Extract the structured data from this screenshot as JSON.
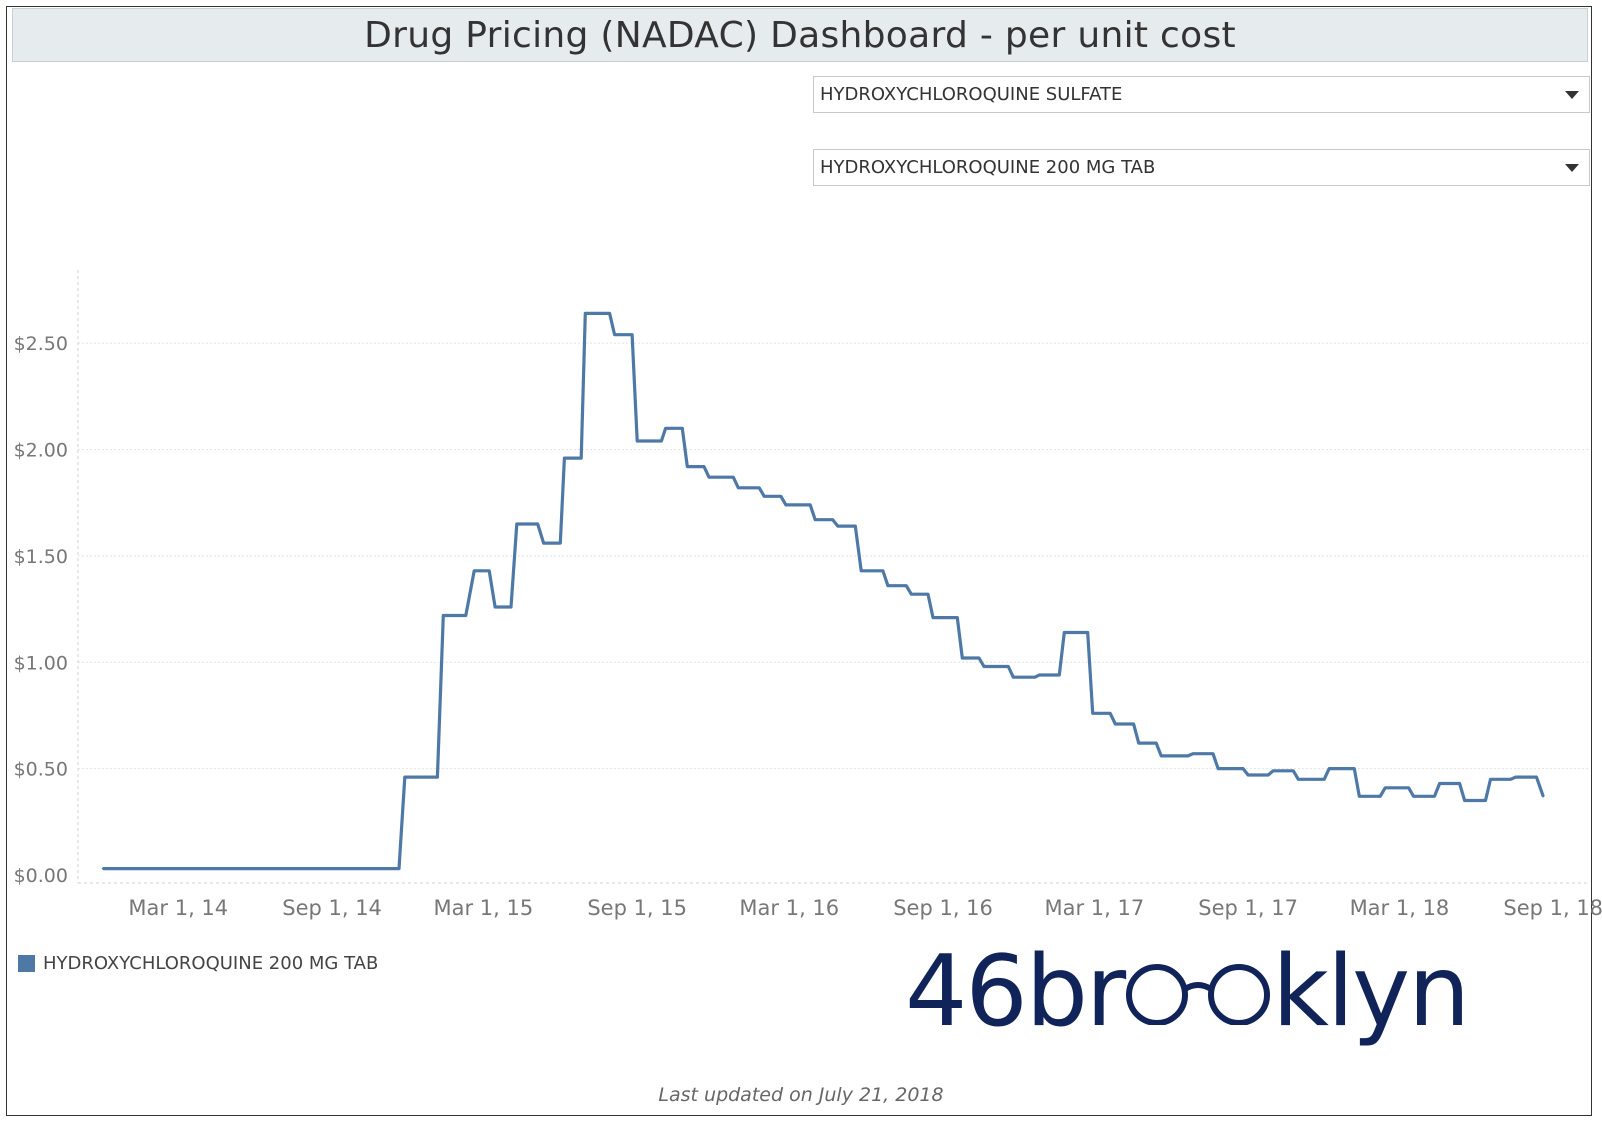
{
  "title": "Drug Pricing (NADAC) Dashboard - per unit cost",
  "filters": {
    "drug_name": "HYDROXYCHLOROQUINE SULFATE",
    "product": "HYDROXYCHLOROQUINE 200 MG TAB"
  },
  "legend": {
    "label": "HYDROXYCHLOROQUINE 200 MG TAB"
  },
  "logo": {
    "prefix": "46br",
    "suffix": "klyn"
  },
  "footer": {
    "updated": "Last updated on July 21, 2018"
  },
  "colors": {
    "series": "#4e79a7",
    "logo": "#10245a"
  },
  "chart_data": {
    "type": "line",
    "title": "",
    "xlabel": "",
    "ylabel": "",
    "ylim": [
      0,
      2.75
    ],
    "xlim": [
      "2013-11-01",
      "2018-10-15"
    ],
    "y_ticks": [
      {
        "value": 0.0,
        "label": "$0.00"
      },
      {
        "value": 0.5,
        "label": "$0.50"
      },
      {
        "value": 1.0,
        "label": "$1.00"
      },
      {
        "value": 1.5,
        "label": "$1.50"
      },
      {
        "value": 2.0,
        "label": "$2.00"
      },
      {
        "value": 2.5,
        "label": "$2.50"
      }
    ],
    "x_ticks": [
      {
        "date": "2014-03-01",
        "label": "Mar 1, 14"
      },
      {
        "date": "2014-09-01",
        "label": "Sep 1, 14"
      },
      {
        "date": "2015-03-01",
        "label": "Mar 1, 15"
      },
      {
        "date": "2015-09-01",
        "label": "Sep 1, 15"
      },
      {
        "date": "2016-03-01",
        "label": "Mar 1, 16"
      },
      {
        "date": "2016-09-01",
        "label": "Sep 1, 16"
      },
      {
        "date": "2017-03-01",
        "label": "Mar 1, 17"
      },
      {
        "date": "2017-09-01",
        "label": "Sep 1, 17"
      },
      {
        "date": "2018-03-01",
        "label": "Mar 1, 18"
      },
      {
        "date": "2018-09-01",
        "label": "Sep 1, 18"
      }
    ],
    "series": [
      {
        "name": "HYDROXYCHLOROQUINE 200 MG TAB",
        "points": [
          [
            "2013-12-01",
            0.03
          ],
          [
            "2014-01-01",
            0.03
          ],
          [
            "2014-03-01",
            0.03
          ],
          [
            "2014-05-01",
            0.03
          ],
          [
            "2014-07-01",
            0.03
          ],
          [
            "2014-09-01",
            0.03
          ],
          [
            "2014-11-01",
            0.03
          ],
          [
            "2014-11-20",
            0.03
          ],
          [
            "2014-11-27",
            0.46
          ],
          [
            "2015-01-05",
            0.46
          ],
          [
            "2015-01-12",
            1.22
          ],
          [
            "2015-02-08",
            1.22
          ],
          [
            "2015-02-18",
            1.43
          ],
          [
            "2015-03-08",
            1.43
          ],
          [
            "2015-03-15",
            1.26
          ],
          [
            "2015-04-03",
            1.26
          ],
          [
            "2015-04-10",
            1.65
          ],
          [
            "2015-05-05",
            1.65
          ],
          [
            "2015-05-12",
            1.56
          ],
          [
            "2015-06-01",
            1.56
          ],
          [
            "2015-06-06",
            1.96
          ],
          [
            "2015-06-26",
            1.96
          ],
          [
            "2015-07-01",
            2.64
          ],
          [
            "2015-07-30",
            2.64
          ],
          [
            "2015-08-05",
            2.54
          ],
          [
            "2015-08-26",
            2.54
          ],
          [
            "2015-09-01",
            2.04
          ],
          [
            "2015-09-30",
            2.04
          ],
          [
            "2015-10-05",
            2.1
          ],
          [
            "2015-10-25",
            2.1
          ],
          [
            "2015-10-31",
            1.92
          ],
          [
            "2015-11-20",
            1.92
          ],
          [
            "2015-11-26",
            1.87
          ],
          [
            "2015-12-25",
            1.87
          ],
          [
            "2015-12-31",
            1.82
          ],
          [
            "2016-01-25",
            1.82
          ],
          [
            "2016-01-31",
            1.78
          ],
          [
            "2016-02-20",
            1.78
          ],
          [
            "2016-02-26",
            1.74
          ],
          [
            "2016-03-26",
            1.74
          ],
          [
            "2016-04-01",
            1.67
          ],
          [
            "2016-04-22",
            1.67
          ],
          [
            "2016-04-28",
            1.64
          ],
          [
            "2016-05-19",
            1.64
          ],
          [
            "2016-05-26",
            1.43
          ],
          [
            "2016-06-21",
            1.43
          ],
          [
            "2016-06-27",
            1.36
          ],
          [
            "2016-07-19",
            1.36
          ],
          [
            "2016-07-25",
            1.32
          ],
          [
            "2016-08-14",
            1.32
          ],
          [
            "2016-08-20",
            1.21
          ],
          [
            "2016-09-18",
            1.21
          ],
          [
            "2016-09-24",
            1.02
          ],
          [
            "2016-10-14",
            1.02
          ],
          [
            "2016-10-20",
            0.98
          ],
          [
            "2016-11-18",
            0.98
          ],
          [
            "2016-11-24",
            0.93
          ],
          [
            "2016-12-20",
            0.93
          ],
          [
            "2016-12-25",
            0.94
          ],
          [
            "2017-01-18",
            0.94
          ],
          [
            "2017-01-24",
            1.14
          ],
          [
            "2017-02-21",
            1.14
          ],
          [
            "2017-02-27",
            0.76
          ],
          [
            "2017-03-20",
            0.76
          ],
          [
            "2017-03-26",
            0.71
          ],
          [
            "2017-04-17",
            0.71
          ],
          [
            "2017-04-23",
            0.62
          ],
          [
            "2017-05-14",
            0.62
          ],
          [
            "2017-05-20",
            0.56
          ],
          [
            "2017-06-21",
            0.56
          ],
          [
            "2017-06-27",
            0.57
          ],
          [
            "2017-07-21",
            0.57
          ],
          [
            "2017-07-27",
            0.5
          ],
          [
            "2017-08-26",
            0.5
          ],
          [
            "2017-09-01",
            0.47
          ],
          [
            "2017-09-25",
            0.47
          ],
          [
            "2017-10-01",
            0.49
          ],
          [
            "2017-10-25",
            0.49
          ],
          [
            "2017-10-31",
            0.45
          ],
          [
            "2017-12-01",
            0.45
          ],
          [
            "2017-12-07",
            0.5
          ],
          [
            "2018-01-06",
            0.5
          ],
          [
            "2018-01-12",
            0.37
          ],
          [
            "2018-02-06",
            0.37
          ],
          [
            "2018-02-12",
            0.41
          ],
          [
            "2018-03-12",
            0.41
          ],
          [
            "2018-03-18",
            0.37
          ],
          [
            "2018-04-12",
            0.37
          ],
          [
            "2018-04-18",
            0.43
          ],
          [
            "2018-05-12",
            0.43
          ],
          [
            "2018-05-18",
            0.35
          ],
          [
            "2018-06-12",
            0.35
          ],
          [
            "2018-06-18",
            0.45
          ],
          [
            "2018-07-12",
            0.45
          ],
          [
            "2018-07-18",
            0.46
          ],
          [
            "2018-08-12",
            0.46
          ],
          [
            "2018-08-20",
            0.37
          ]
        ]
      }
    ]
  }
}
